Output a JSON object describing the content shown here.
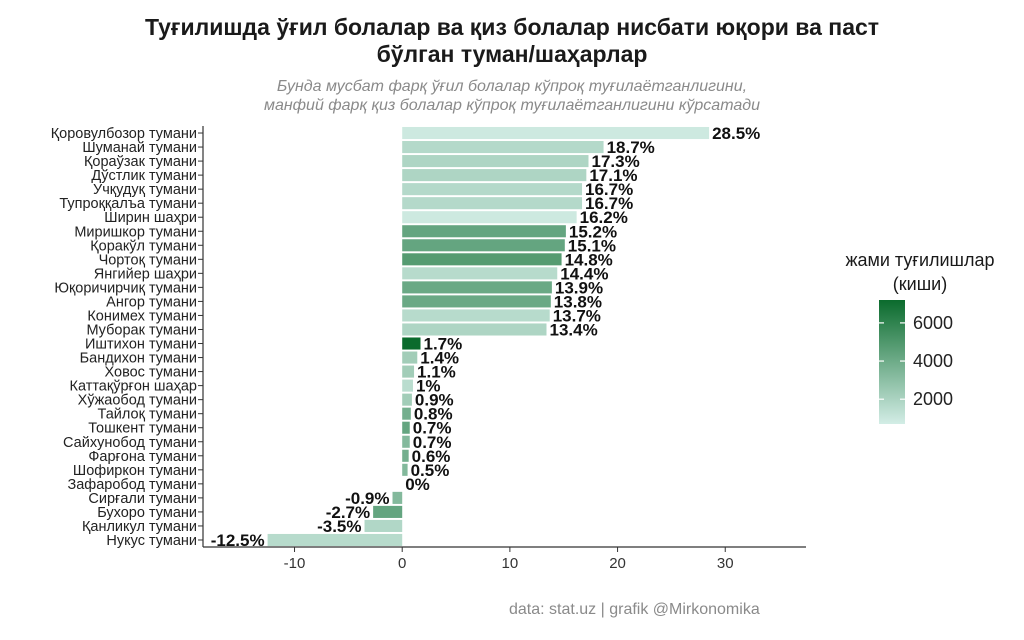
{
  "title_lines": [
    "Туғилишда ўғил болалар ва қиз болалар нисбати юқори ва  паст",
    "бўлган туман/шаҳарлар"
  ],
  "subtitle_lines": [
    "Бунда мусбат фарқ ўғил болалар кўпроқ туғилаётганлигини,",
    "манфий фарқ қиз болалар кўпроқ туғилаётганлигини кўрсатади"
  ],
  "caption": "data: stat.uz | grafik @Mirkonomika",
  "legend": {
    "title_lines": [
      "жами туғилишлар",
      "(киши)"
    ],
    "ticks": [
      {
        "value": 2000,
        "label": "2000"
      },
      {
        "value": 4000,
        "label": "4000"
      },
      {
        "value": 6000,
        "label": "6000"
      }
    ],
    "range": [
      700,
      7200
    ],
    "color_low": "#d3ede6",
    "color_high": "#0b6b2d"
  },
  "chart_data": {
    "type": "bar",
    "orientation": "horizontal",
    "title": "Туғилишда ўғил болалар ва қиз болалар нисбати юқори ва  паст бўлган туман/шаҳарлар",
    "xlabel": "",
    "ylabel": "",
    "xlim": [
      -18.5,
      37.5
    ],
    "xticks": [
      -10,
      0,
      10,
      20,
      30
    ],
    "xtick_labels": [
      "-10",
      "0",
      "10",
      "20",
      "30"
    ],
    "grid": false,
    "legend_position": "right",
    "categories": [
      "Қоровулбозор тумани",
      "Шуманай тумани",
      "Қораўзак тумани",
      "Дўстлик тумани",
      "Учқудуқ тумани",
      "Тупроққалъа тумани",
      "Ширин шаҳри",
      "Миришкор тумани",
      "Қоракўл тумани",
      "Чортоқ тумани",
      "Янгийер шаҳри",
      "Юқоричирчиқ тумани",
      "Ангор тумани",
      "Конимех тумани",
      "Муборак тумани",
      "Иштихон тумани",
      "Бандихон тумани",
      "Ховос тумани",
      "Каттақўрғон шаҳар",
      "Хўжаобод тумани",
      "Тайлоқ тумани",
      "Тошкент тумани",
      "Сайхунобод тумани",
      "Фарғона тумани",
      "Шофиркон тумани",
      "Зафаробод тумани",
      "Сирғали тумани",
      "Бухоро тумани",
      "Қанликул тумани",
      "Нукус тумани"
    ],
    "values": [
      28.5,
      18.7,
      17.3,
      17.1,
      16.7,
      16.7,
      16.2,
      15.2,
      15.1,
      14.8,
      14.4,
      13.9,
      13.8,
      13.7,
      13.4,
      1.7,
      1.4,
      1.1,
      1.0,
      0.9,
      0.8,
      0.7,
      0.7,
      0.6,
      0.5,
      0.0,
      -0.9,
      -2.7,
      -3.5,
      -12.5
    ],
    "labels": [
      "28.5%",
      "18.7%",
      "17.3%",
      "17.1%",
      "16.7%",
      "16.7%",
      "16.2%",
      "15.2%",
      "15.1%",
      "14.8%",
      "14.4%",
      "13.9%",
      "13.8%",
      "13.7%",
      "13.4%",
      "1.7%",
      "1.4%",
      "1.1%",
      "1%",
      "0.9%",
      "0.8%",
      "0.7%",
      "0.7%",
      "0.6%",
      "0.5%",
      "0%",
      "-0.9%",
      "-2.7%",
      "-3.5%",
      "-12.5%"
    ],
    "total_births": [
      900,
      1700,
      1900,
      1900,
      1700,
      1700,
      900,
      4300,
      4300,
      4800,
      1600,
      4100,
      4100,
      1600,
      1900,
      7200,
      2300,
      2300,
      1500,
      2300,
      3800,
      4300,
      3300,
      3800,
      3300,
      1500,
      3300,
      4300,
      1800,
      1600
    ]
  }
}
